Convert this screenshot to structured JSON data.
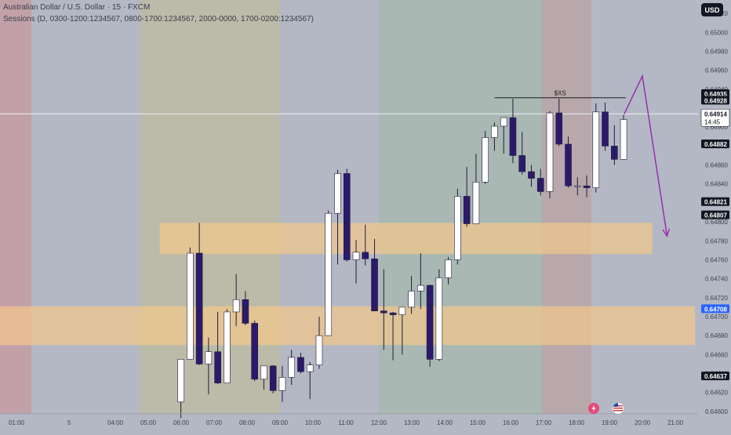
{
  "header": {
    "title": "Australian Dollar / U.S. Dollar · 15 · FXCM",
    "sessions": "Sessions (D, 0300-1200:1234567, 0800-1700:1234567, 2000-0000, 1700-0200:1234567)"
  },
  "currency_button": "USD",
  "colors": {
    "bullish": "#ffffff",
    "bearish": "#2b1a6b",
    "zone": "#f3c88a",
    "arrow": "#9b2fae",
    "bg": "#b3b8c4"
  },
  "chart_data": {
    "type": "candlestick",
    "symbol": "AUD/USD",
    "interval": "15",
    "ylim": [
      0.6459,
      0.6503
    ],
    "y_ticks": [
      "0.65020",
      "0.65000",
      "0.64980",
      "0.64960",
      "0.64940",
      "0.64900",
      "0.64880",
      "0.64860",
      "0.64840",
      "0.64800",
      "0.64780",
      "0.64760",
      "0.64740",
      "0.64720",
      "0.64700",
      "0.64680",
      "0.64660",
      "0.64640",
      "0.64620",
      "0.64600"
    ],
    "x_ticks": [
      {
        "t": 1.0,
        "label": "01:00"
      },
      {
        "t": 2.6,
        "label": "5"
      },
      {
        "t": 4.0,
        "label": "04:00"
      },
      {
        "t": 5.0,
        "label": "05:00"
      },
      {
        "t": 6.0,
        "label": "06:00"
      },
      {
        "t": 7.0,
        "label": "07:00"
      },
      {
        "t": 8.0,
        "label": "08:00"
      },
      {
        "t": 9.0,
        "label": "09:00"
      },
      {
        "t": 10.0,
        "label": "10:00"
      },
      {
        "t": 11.0,
        "label": "11:00"
      },
      {
        "t": 12.0,
        "label": "12:00"
      },
      {
        "t": 13.0,
        "label": "13:00"
      },
      {
        "t": 14.0,
        "label": "14:00"
      },
      {
        "t": 15.0,
        "label": "15:00"
      },
      {
        "t": 16.0,
        "label": "16:00"
      },
      {
        "t": 17.0,
        "label": "17:00"
      },
      {
        "t": 18.0,
        "label": "18:00"
      },
      {
        "t": 19.0,
        "label": "19:00"
      },
      {
        "t": 20.0,
        "label": "20:00"
      },
      {
        "t": 21.0,
        "label": "21:00"
      }
    ],
    "sessions": [
      {
        "start": 0.0,
        "end": 1.45,
        "color": "#c2a0a8"
      },
      {
        "start": 1.45,
        "end": 4.75,
        "color": "#b3b8c4"
      },
      {
        "start": 4.75,
        "end": 9.0,
        "color": "#bcbba9"
      },
      {
        "start": 9.0,
        "end": 12.0,
        "color": "#b3b8c4"
      },
      {
        "start": 12.0,
        "end": 16.95,
        "color": "#a9b8b3"
      },
      {
        "start": 16.95,
        "end": 18.45,
        "color": "#b8a8ab"
      },
      {
        "start": 18.45,
        "end": 21.6,
        "color": "#b3b8c4"
      }
    ],
    "zones": [
      {
        "t_start": 5.35,
        "t_end": 20.3,
        "top": 0.64799,
        "bottom": 0.64766
      },
      {
        "t_start": 0.0,
        "t_end": 21.6,
        "top": 0.64711,
        "bottom": 0.6467
      }
    ],
    "candles": [
      {
        "t": 5.99,
        "o": 0.6461,
        "h": 0.64655,
        "l": 0.64593,
        "c": 0.64655
      },
      {
        "t": 6.27,
        "o": 0.64655,
        "h": 0.64773,
        "l": 0.64655,
        "c": 0.64767
      },
      {
        "t": 6.55,
        "o": 0.64767,
        "h": 0.64799,
        "l": 0.64649,
        "c": 0.6465
      },
      {
        "t": 6.83,
        "o": 0.6465,
        "h": 0.64678,
        "l": 0.64618,
        "c": 0.64663
      },
      {
        "t": 7.11,
        "o": 0.64663,
        "h": 0.64705,
        "l": 0.64629,
        "c": 0.6463
      },
      {
        "t": 7.39,
        "o": 0.6463,
        "h": 0.64708,
        "l": 0.6463,
        "c": 0.64705
      },
      {
        "t": 7.67,
        "o": 0.64705,
        "h": 0.64745,
        "l": 0.6469,
        "c": 0.64718
      },
      {
        "t": 7.95,
        "o": 0.64718,
        "h": 0.64727,
        "l": 0.64691,
        "c": 0.64693
      },
      {
        "t": 8.23,
        "o": 0.64693,
        "h": 0.64696,
        "l": 0.64632,
        "c": 0.64634
      },
      {
        "t": 8.51,
        "o": 0.64634,
        "h": 0.64648,
        "l": 0.64623,
        "c": 0.64648
      },
      {
        "t": 8.79,
        "o": 0.64648,
        "h": 0.64649,
        "l": 0.64619,
        "c": 0.64622
      },
      {
        "t": 9.07,
        "o": 0.64622,
        "h": 0.64648,
        "l": 0.6461,
        "c": 0.64636
      },
      {
        "t": 9.35,
        "o": 0.64636,
        "h": 0.64665,
        "l": 0.64628,
        "c": 0.64657
      },
      {
        "t": 9.63,
        "o": 0.64657,
        "h": 0.64662,
        "l": 0.6464,
        "c": 0.64642
      },
      {
        "t": 9.91,
        "o": 0.64642,
        "h": 0.64652,
        "l": 0.64613,
        "c": 0.64649
      },
      {
        "t": 10.19,
        "o": 0.64649,
        "h": 0.647,
        "l": 0.64645,
        "c": 0.6468
      },
      {
        "t": 10.47,
        "o": 0.6468,
        "h": 0.64812,
        "l": 0.6468,
        "c": 0.64809
      },
      {
        "t": 10.75,
        "o": 0.64809,
        "h": 0.64855,
        "l": 0.64755,
        "c": 0.64851
      },
      {
        "t": 11.03,
        "o": 0.64851,
        "h": 0.64856,
        "l": 0.64758,
        "c": 0.6476
      },
      {
        "t": 11.31,
        "o": 0.6476,
        "h": 0.64781,
        "l": 0.64735,
        "c": 0.64768
      },
      {
        "t": 11.59,
        "o": 0.64768,
        "h": 0.64797,
        "l": 0.64754,
        "c": 0.64761
      },
      {
        "t": 11.87,
        "o": 0.64761,
        "h": 0.64782,
        "l": 0.64706,
        "c": 0.64706
      },
      {
        "t": 12.15,
        "o": 0.64706,
        "h": 0.6475,
        "l": 0.64665,
        "c": 0.64704
      },
      {
        "t": 12.43,
        "o": 0.64704,
        "h": 0.64705,
        "l": 0.64654,
        "c": 0.64702
      },
      {
        "t": 12.71,
        "o": 0.64702,
        "h": 0.6471,
        "l": 0.6466,
        "c": 0.6471
      },
      {
        "t": 12.99,
        "o": 0.6471,
        "h": 0.64743,
        "l": 0.64703,
        "c": 0.64727
      },
      {
        "t": 13.27,
        "o": 0.64727,
        "h": 0.64767,
        "l": 0.64708,
        "c": 0.64733
      },
      {
        "t": 13.55,
        "o": 0.64733,
        "h": 0.64734,
        "l": 0.64647,
        "c": 0.64655
      },
      {
        "t": 13.83,
        "o": 0.64655,
        "h": 0.6475,
        "l": 0.64653,
        "c": 0.64741
      },
      {
        "t": 14.11,
        "o": 0.64741,
        "h": 0.64763,
        "l": 0.64734,
        "c": 0.6476
      },
      {
        "t": 14.39,
        "o": 0.6476,
        "h": 0.64835,
        "l": 0.64755,
        "c": 0.64827
      },
      {
        "t": 14.67,
        "o": 0.64827,
        "h": 0.64858,
        "l": 0.64795,
        "c": 0.64798
      },
      {
        "t": 14.95,
        "o": 0.64798,
        "h": 0.64872,
        "l": 0.64798,
        "c": 0.64842
      },
      {
        "t": 15.23,
        "o": 0.64842,
        "h": 0.64896,
        "l": 0.6484,
        "c": 0.64889
      },
      {
        "t": 15.51,
        "o": 0.64889,
        "h": 0.64905,
        "l": 0.64875,
        "c": 0.64901
      },
      {
        "t": 15.79,
        "o": 0.64901,
        "h": 0.64908,
        "l": 0.64872,
        "c": 0.6491
      },
      {
        "t": 16.07,
        "o": 0.6491,
        "h": 0.6493,
        "l": 0.64862,
        "c": 0.6487
      },
      {
        "t": 16.35,
        "o": 0.6487,
        "h": 0.64895,
        "l": 0.6485,
        "c": 0.64853
      },
      {
        "t": 16.63,
        "o": 0.64853,
        "h": 0.6486,
        "l": 0.64837,
        "c": 0.64846
      },
      {
        "t": 16.91,
        "o": 0.64846,
        "h": 0.64856,
        "l": 0.64828,
        "c": 0.64832
      },
      {
        "t": 17.19,
        "o": 0.64832,
        "h": 0.64917,
        "l": 0.64825,
        "c": 0.64915
      },
      {
        "t": 17.47,
        "o": 0.64915,
        "h": 0.6493,
        "l": 0.6488,
        "c": 0.64882
      },
      {
        "t": 17.75,
        "o": 0.64882,
        "h": 0.6489,
        "l": 0.64836,
        "c": 0.64838
      },
      {
        "t": 18.03,
        "o": 0.64838,
        "h": 0.64847,
        "l": 0.64828,
        "c": 0.64838
      },
      {
        "t": 18.31,
        "o": 0.64838,
        "h": 0.64849,
        "l": 0.64826,
        "c": 0.64836
      },
      {
        "t": 18.59,
        "o": 0.64836,
        "h": 0.64925,
        "l": 0.64831,
        "c": 0.64916
      },
      {
        "t": 18.87,
        "o": 0.64916,
        "h": 0.64926,
        "l": 0.64875,
        "c": 0.6488
      },
      {
        "t": 19.15,
        "o": 0.6488,
        "h": 0.64902,
        "l": 0.6486,
        "c": 0.64866
      },
      {
        "t": 19.43,
        "o": 0.64866,
        "h": 0.64913,
        "l": 0.64866,
        "c": 0.64908
      }
    ],
    "current_price_line": 0.64914,
    "price_tags": [
      {
        "value": 0.64935,
        "label": "0.64935",
        "style": "dark"
      },
      {
        "value": 0.64928,
        "label": "0.64928",
        "style": "dark"
      },
      {
        "value": 0.64914,
        "label": "0.64914",
        "style": "light",
        "sub": "14:45"
      },
      {
        "value": 0.64882,
        "label": "0.64882",
        "style": "dark"
      },
      {
        "value": 0.64821,
        "label": "0.64821",
        "style": "dark"
      },
      {
        "value": 0.64807,
        "label": "0.64807",
        "style": "dark"
      },
      {
        "value": 0.64708,
        "label": "0.64708",
        "style": "blue"
      },
      {
        "value": 0.64637,
        "label": "0.64637",
        "style": "dark"
      }
    ],
    "annotations": [
      {
        "type": "level",
        "label": "$XS",
        "t_start": 15.51,
        "t_end": 19.5,
        "value": 0.64931
      }
    ],
    "projection": [
      {
        "t": 19.45,
        "v": 0.64914
      },
      {
        "t": 20.0,
        "v": 0.64954
      },
      {
        "t": 20.75,
        "v": 0.64785
      }
    ]
  }
}
